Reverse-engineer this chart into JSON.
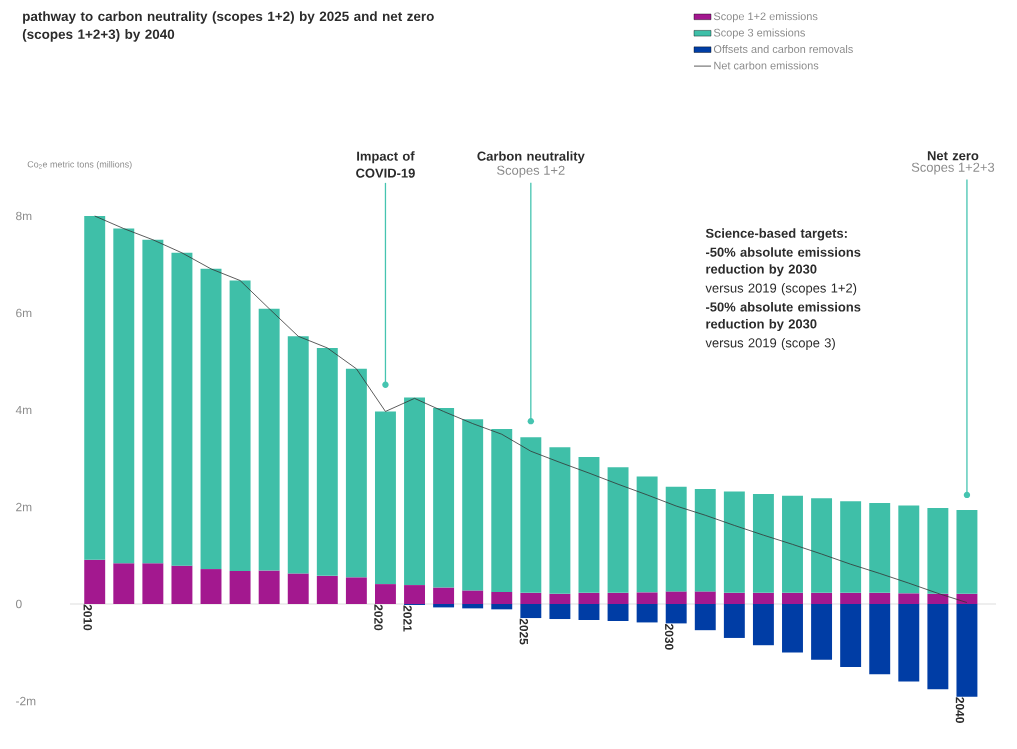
{
  "chart_data": {
    "type": "bar",
    "title": "pathway to carbon neutrality (scopes 1+2) by 2025 and net zero (scopes 1+2+3) by 2040",
    "ylabel": "Co$_{2}$e metric tons (millions)",
    "categories": [
      "2010",
      null,
      null,
      null,
      null,
      null,
      null,
      null,
      null,
      null,
      "2020",
      "2021",
      null,
      null,
      null,
      "2025",
      null,
      null,
      null,
      null,
      "2030",
      null,
      null,
      null,
      null,
      null,
      null,
      null,
      null,
      null,
      "2040"
    ],
    "stacked": true,
    "legend": "top right",
    "grid": false,
    "ylim": [
      -2,
      8
    ],
    "yticks": [
      {
        "value": -2,
        "label": "-2m"
      },
      0,
      {
        "value": 2,
        "label": "2m"
      },
      {
        "value": 4,
        "label": "4m"
      },
      {
        "value": 6,
        "label": "6m"
      },
      {
        "value": 8,
        "label": "8m"
      }
    ],
    "series": [
      {
        "name": "Scope 1+2 emissions",
        "color": "#a3188f",
        "values": [
          0.91,
          0.84,
          0.84,
          0.79,
          0.72,
          0.68,
          0.69,
          0.63,
          0.58,
          0.55,
          0.41,
          0.39,
          0.34,
          0.28,
          0.25,
          0.23,
          0.21,
          0.23,
          0.23,
          0.24,
          0.26,
          0.26,
          0.23,
          0.23,
          0.23,
          0.23,
          0.23,
          0.23,
          0.22,
          0.21,
          0.21
        ]
      },
      {
        "name": "Scope 3 emissions",
        "color": "#3fbfa8",
        "values": [
          7.09,
          6.9,
          6.67,
          6.45,
          6.19,
          5.99,
          5.4,
          4.89,
          4.7,
          4.3,
          3.56,
          3.87,
          3.7,
          3.53,
          3.36,
          3.21,
          3.02,
          2.8,
          2.59,
          2.39,
          2.16,
          2.11,
          2.09,
          2.04,
          2.0,
          1.95,
          1.89,
          1.85,
          1.81,
          1.77,
          1.73
        ]
      },
      {
        "name": "Offsets and carbon removals",
        "color": "#003da5",
        "values": [
          0,
          0,
          0,
          0,
          0,
          0,
          0,
          0,
          0,
          0,
          0,
          -0.02,
          -0.07,
          -0.09,
          -0.11,
          -0.29,
          -0.31,
          -0.33,
          -0.35,
          -0.38,
          -0.4,
          -0.54,
          -0.7,
          -0.85,
          -1.0,
          -1.15,
          -1.3,
          -1.45,
          -1.6,
          -1.76,
          -1.91
        ]
      },
      {
        "name": "Net carbon emissions",
        "type": "line",
        "color": "#333333",
        "values": [
          8.0,
          7.74,
          7.51,
          7.24,
          6.91,
          6.67,
          6.09,
          5.52,
          5.28,
          4.85,
          3.97,
          4.24,
          3.97,
          3.72,
          3.5,
          3.15,
          2.92,
          2.7,
          2.47,
          2.25,
          2.02,
          1.83,
          1.62,
          1.42,
          1.23,
          1.03,
          0.82,
          0.63,
          0.43,
          0.22,
          0.03
        ]
      }
    ],
    "annotations": [
      "Impact of COVID-19",
      "Carbon neutrality",
      "Scopes 1+2",
      "Net zero",
      "Scopes 1+2+3",
      "**Science-based targets:**",
      "**-50% absolute emissions reduction by 2030**",
      "versus 2019 (scopes 1+2)",
      "**-50% absolute emissions reduction by 2030**",
      "versus 2019 (scope 3)"
    ]
  }
}
